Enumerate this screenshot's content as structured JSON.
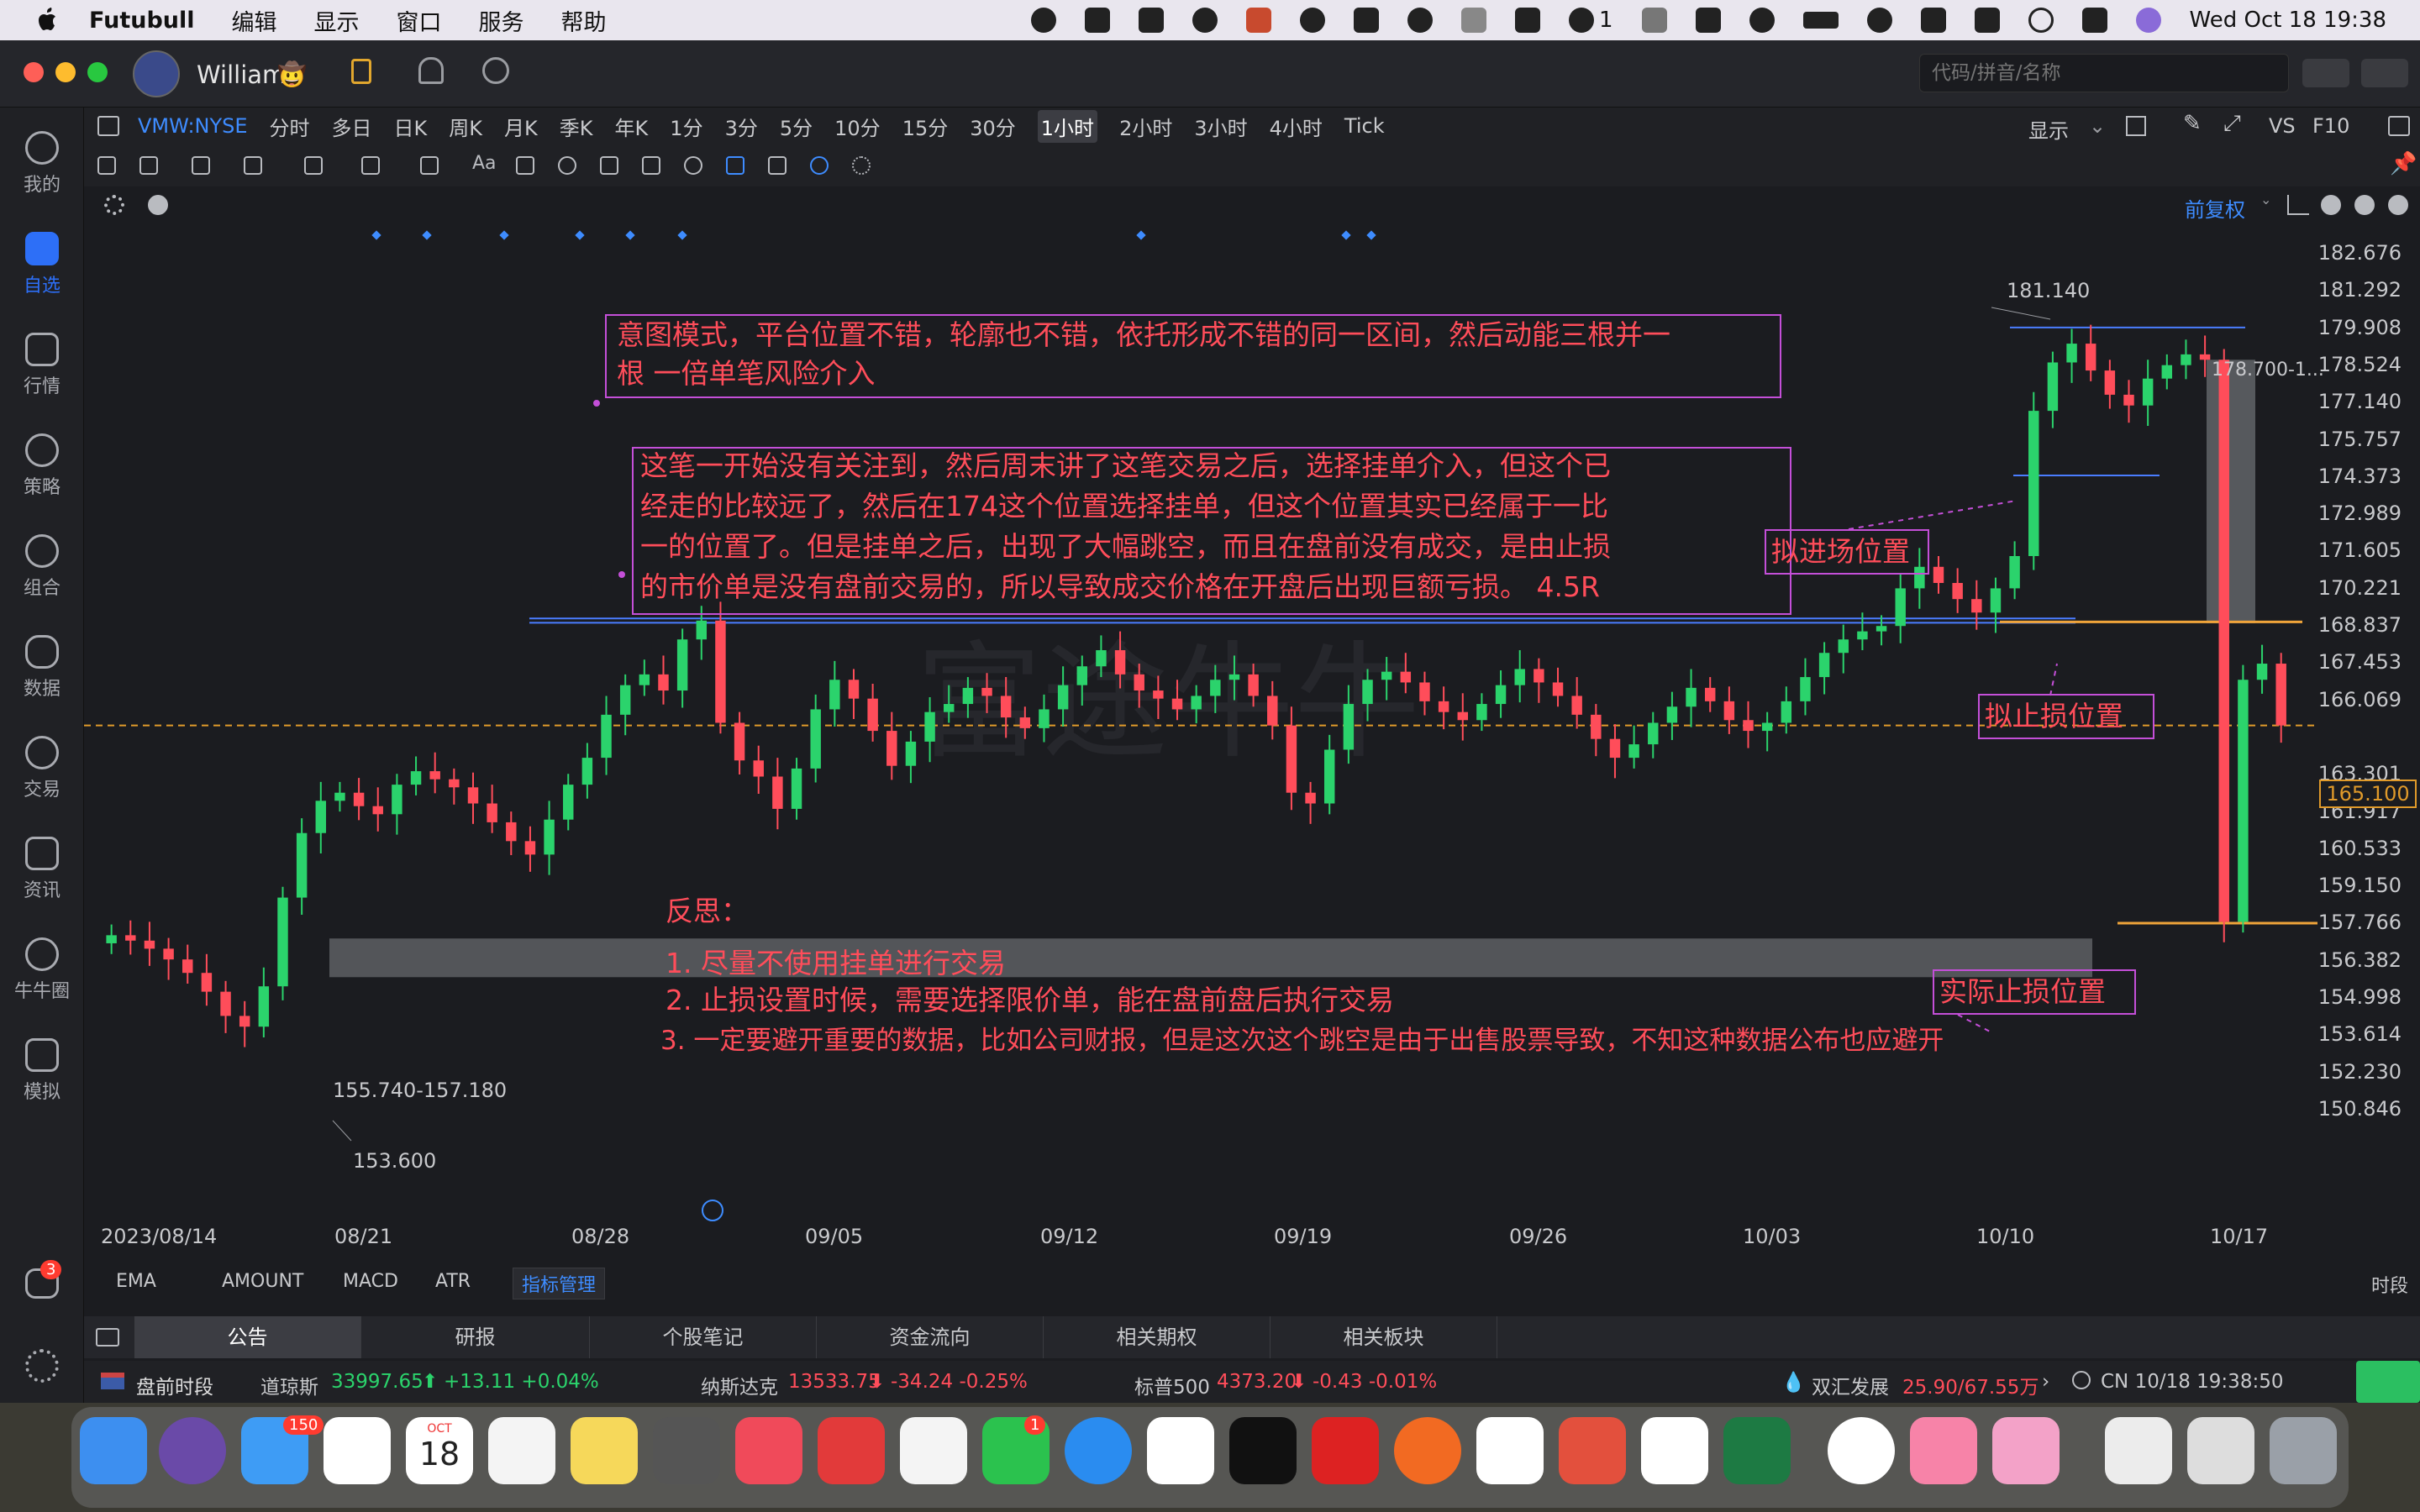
{
  "menubar": {
    "app_name": "Futubull",
    "items": [
      "编辑",
      "显示",
      "窗口",
      "服务",
      "帮助"
    ],
    "tray_count": "1",
    "clock": "Wed Oct 18  19:38"
  },
  "titlebar": {
    "user_name": "William",
    "search_placeholder": "代码/拼音/名称"
  },
  "leftnav": {
    "items": [
      {
        "label": "我的",
        "icon": "user-icon"
      },
      {
        "label": "自选",
        "icon": "watchlist-icon"
      },
      {
        "label": "行情",
        "icon": "market-icon"
      },
      {
        "label": "策略",
        "icon": "strategy-icon"
      },
      {
        "label": "组合",
        "icon": "portfolio-icon"
      },
      {
        "label": "数据",
        "icon": "data-icon"
      },
      {
        "label": "交易",
        "icon": "trade-icon"
      },
      {
        "label": "资讯",
        "icon": "news-icon"
      },
      {
        "label": "牛牛圈",
        "icon": "community-icon"
      },
      {
        "label": "模拟",
        "icon": "simulate-icon"
      }
    ],
    "chat_badge": "3"
  },
  "periodbar": {
    "symbol": "VMW:NYSE",
    "periods": [
      "分时",
      "多日",
      "日K",
      "周K",
      "月K",
      "季K",
      "年K",
      "1分",
      "3分",
      "5分",
      "10分",
      "15分",
      "30分",
      "1小时",
      "2小时",
      "3小时",
      "4小时",
      "Tick"
    ],
    "active_period": "1小时",
    "display_label": "显示",
    "vs_label": "VS",
    "f10_label": "F10"
  },
  "settingsbar": {
    "adjust_label": "前复权"
  },
  "chart_data": {
    "type": "candlestick",
    "symbol": "VMW:NYSE",
    "interval": "1小时",
    "y_ticks": [
      "182.676",
      "181.292",
      "179.908",
      "178.524",
      "177.140",
      "175.757",
      "174.373",
      "172.989",
      "171.605",
      "170.221",
      "168.837",
      "167.453",
      "166.069",
      "165.100",
      "163.301",
      "161.917",
      "160.533",
      "159.150",
      "157.766",
      "156.382",
      "154.998",
      "153.614",
      "152.230",
      "150.846"
    ],
    "ylim": [
      150.846,
      182.676
    ],
    "x_ticks": [
      "2023/08/14",
      "08/21",
      "08/28",
      "09/05",
      "09/12",
      "09/19",
      "09/26",
      "10/03",
      "10/10",
      "10/17"
    ],
    "last_price": "165.100",
    "high_label": "181.140",
    "low_label": "153.600",
    "range_label": "155.740-157.180",
    "target_label": "178.700-1...",
    "series_closes": [
      157.3,
      157.1,
      156.8,
      156.4,
      155.9,
      155.2,
      154.3,
      153.9,
      155.4,
      158.7,
      161.1,
      162.3,
      162.6,
      162.1,
      161.8,
      162.9,
      163.4,
      163.1,
      162.8,
      162.2,
      161.5,
      160.8,
      160.3,
      161.6,
      162.9,
      163.9,
      165.5,
      166.6,
      167.0,
      166.4,
      168.3,
      169.0,
      165.2,
      163.8,
      163.2,
      162.0,
      163.5,
      165.7,
      166.8,
      166.1,
      164.9,
      163.6,
      164.5,
      165.6,
      165.9,
      166.5,
      166.2,
      165.4,
      165.0,
      165.7,
      166.6,
      167.3,
      167.9,
      167.0,
      166.4,
      166.1,
      165.7,
      166.2,
      166.8,
      167.0,
      166.2,
      165.1,
      162.6,
      162.2,
      164.2,
      165.9,
      166.8,
      167.1,
      166.7,
      166.0,
      165.6,
      165.3,
      165.9,
      166.6,
      167.2,
      166.7,
      166.2,
      165.5,
      164.6,
      163.9,
      164.4,
      165.2,
      165.8,
      166.5,
      166.0,
      165.3,
      164.9,
      165.2,
      166.0,
      166.9,
      167.8,
      168.3,
      168.6,
      168.8,
      170.2,
      171.0,
      170.4,
      169.8,
      169.3,
      170.2,
      171.4,
      176.8,
      178.6,
      179.3,
      178.3,
      177.4,
      177.0,
      178.0,
      178.5,
      178.9,
      178.7,
      157.8,
      166.8,
      167.4,
      165.1
    ],
    "annotations": [
      "意图模式，平台位置不错，轮廓也不错，依托形成不错的同一区间，然后动能三根并一",
      "根  一倍单笔风险介入",
      "这笔一开始没有关注到，然后周末讲了这笔交易之后，选择挂单介入，但这个已",
      "经走的比较远了，然后在174这个位置选择挂单，但这个位置其实已经属于一比",
      "一的位置了。但是挂单之后，出现了大幅跳空，而且在盘前没有成交，是由止损",
      "的市价单是没有盘前交易的，所以导致成交价格在开盘后出现巨额亏损。  4.5R",
      "拟进场位置",
      "拟止损位置",
      "实际止损位置",
      "反思：",
      "1. 尽量不使用挂单进行交易",
      "2. 止损设置时候，需要选择限价单，能在盘前盘后执行交易",
      "3. 一定要避开重要的数据，比如公司财报，但是这次这个跳空是由于出售股票导致，不知这种数据公布也应避开"
    ],
    "watermark": "富途牛牛",
    "up_color": "#2bd36c",
    "down_color": "#ff4d5a"
  },
  "indicators": {
    "tabs": [
      "EMA",
      "AMOUNT",
      "MACD",
      "ATR"
    ],
    "manage_label": "指标管理",
    "period_label": "时段"
  },
  "bottomtabs": [
    "公告",
    "研报",
    "个股笔记",
    "资金流向",
    "相关期权",
    "相关板块"
  ],
  "statusbar": {
    "session": "盘前时段",
    "dow_label": "道琼斯",
    "dow_value": "33997.65",
    "dow_change": "+13.11  +0.04%",
    "nasdaq_label": "纳斯达克",
    "nasdaq_value": "13533.75",
    "nasdaq_change": "-34.24  -0.25%",
    "sp_label": "标普500",
    "sp_value": "4373.20",
    "sp_change": "-0.43  -0.01%",
    "flow_label": "双汇发展",
    "flow_value": "25.90/67.55万",
    "cn_time": "CN 10/18 19:38:50"
  },
  "dock": {
    "mail_badge": "150",
    "calendar_month": "OCT",
    "calendar_day": "18",
    "wechat_badge": "1"
  }
}
